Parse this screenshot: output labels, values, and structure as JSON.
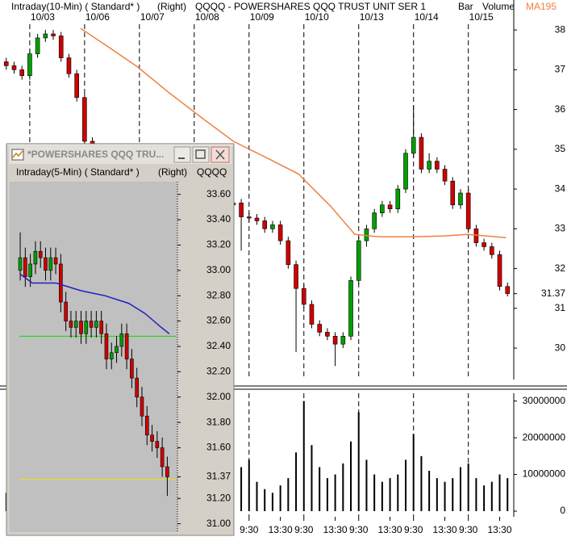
{
  "chart_data": [
    {
      "type": "candlestick",
      "header": [
        "Intraday(10-Min) ( Standard* )",
        "(Right)",
        "QQQQ - POWERSHARES QQQ TRUST UNIT SER 1",
        "Bar",
        "Volume"
      ],
      "up_color": "#00a000",
      "down_color": "#d00000",
      "x": [
        -3,
        -2,
        -1,
        0,
        1,
        2,
        3,
        4,
        5,
        6,
        7,
        8,
        9,
        10,
        11,
        12,
        13,
        14,
        15,
        16,
        17,
        18,
        19,
        20,
        21,
        22,
        23,
        24,
        25,
        26,
        27,
        28,
        29,
        30,
        31,
        32,
        33,
        34,
        35,
        36,
        37,
        38,
        39,
        40,
        41,
        42,
        43,
        44,
        45,
        46,
        47,
        48,
        49,
        50,
        51,
        52,
        53,
        54,
        55,
        56,
        57,
        58,
        59,
        60,
        61
      ],
      "open": [
        37.2,
        37.1,
        37.0,
        36.85,
        37.4,
        37.8,
        37.9,
        37.85,
        37.3,
        36.9,
        36.3,
        35.2,
        34.8,
        34.5,
        34.3,
        34.0,
        34.2,
        34.4,
        34.5,
        34.3,
        34.0,
        33.8,
        33.5,
        33.2,
        33.3,
        33.5,
        33.6,
        33.8,
        33.7,
        33.6,
        33.65,
        33.3,
        33.27,
        33.2,
        33.0,
        33.1,
        32.7,
        32.1,
        31.5,
        31.1,
        30.6,
        30.4,
        30.3,
        30.1,
        30.3,
        31.7,
        32.7,
        33.0,
        33.4,
        33.6,
        33.5,
        34.0,
        34.9,
        35.3,
        34.5,
        34.7,
        34.5,
        34.2,
        33.6,
        33.9,
        33.0,
        32.65,
        32.55,
        32.35,
        31.55
      ],
      "high": [
        37.3,
        37.2,
        37.1,
        37.5,
        37.9,
        38.0,
        38.0,
        37.95,
        37.4,
        37.0,
        36.4,
        35.3,
        34.9,
        34.6,
        34.4,
        34.3,
        34.5,
        34.6,
        34.6,
        34.4,
        34.1,
        33.9,
        33.6,
        33.4,
        33.6,
        33.7,
        33.9,
        33.9,
        33.8,
        33.75,
        33.75,
        33.4,
        33.37,
        33.3,
        33.2,
        33.2,
        32.8,
        32.2,
        31.6,
        31.2,
        30.7,
        30.5,
        30.4,
        30.4,
        31.8,
        32.8,
        33.1,
        33.5,
        33.7,
        33.7,
        34.1,
        35.0,
        36.1,
        35.4,
        34.9,
        34.8,
        34.6,
        34.3,
        34.0,
        34.0,
        33.1,
        32.75,
        32.65,
        32.45,
        31.65
      ],
      "low": [
        37.0,
        36.9,
        36.75,
        36.75,
        37.3,
        37.7,
        37.75,
        37.2,
        36.8,
        36.2,
        35.1,
        34.7,
        34.4,
        34.2,
        33.9,
        33.9,
        34.1,
        34.3,
        34.2,
        33.9,
        33.7,
        33.4,
        33.1,
        33.1,
        33.2,
        33.4,
        33.5,
        33.6,
        33.5,
        33.5,
        32.45,
        33.17,
        33.1,
        32.9,
        32.9,
        32.6,
        32.0,
        29.9,
        31.0,
        30.5,
        30.3,
        30.2,
        29.55,
        30.0,
        30.2,
        31.6,
        32.55,
        32.9,
        33.3,
        33.4,
        33.4,
        33.9,
        34.8,
        34.4,
        34.4,
        34.4,
        34.1,
        33.5,
        33.5,
        32.9,
        32.55,
        32.45,
        32.25,
        31.45,
        31.3
      ],
      "close": [
        37.1,
        37.0,
        36.85,
        37.4,
        37.8,
        37.9,
        37.85,
        37.3,
        36.9,
        36.3,
        35.2,
        34.8,
        34.5,
        34.3,
        34.0,
        34.2,
        34.4,
        34.5,
        34.3,
        34.0,
        33.8,
        33.5,
        33.2,
        33.3,
        33.5,
        33.6,
        33.8,
        33.7,
        33.6,
        33.65,
        33.3,
        33.27,
        33.2,
        33.0,
        33.1,
        32.7,
        32.1,
        31.5,
        31.1,
        30.6,
        30.4,
        30.3,
        30.1,
        30.3,
        31.7,
        32.7,
        33.0,
        33.4,
        33.6,
        33.5,
        34.0,
        34.9,
        35.3,
        34.5,
        34.7,
        34.5,
        34.2,
        33.6,
        33.9,
        33.0,
        32.65,
        32.55,
        32.35,
        31.55,
        31.37
      ],
      "ma": {
        "name": "MA195",
        "color": "#f08040",
        "x": [
          6.5,
          9.6,
          13.7,
          17.8,
          21.9,
          26,
          30.2,
          34.3,
          38.4,
          41.5,
          44.6,
          48.7,
          52.8,
          55.9,
          60.8
        ],
        "values": [
          38.04,
          37.63,
          37.08,
          36.42,
          35.8,
          35.2,
          34.79,
          34.38,
          33.57,
          32.86,
          32.8,
          32.8,
          32.82,
          32.86,
          32.78
        ]
      },
      "xlim": [
        -3.8,
        61.8
      ],
      "xticks": [
        {
          "value": 0,
          "label": "10/03"
        },
        {
          "value": 7,
          "label": "10/06"
        },
        {
          "value": 14,
          "label": "10/07"
        },
        {
          "value": 21,
          "label": "10/08"
        },
        {
          "value": 28,
          "label": "10/09"
        },
        {
          "value": 35,
          "label": "10/10"
        },
        {
          "value": 42,
          "label": "10/13"
        },
        {
          "value": 49,
          "label": "10/14"
        },
        {
          "value": 56,
          "label": "10/15"
        }
      ],
      "ylim": [
        29.21,
        38.55
      ],
      "yticks": [
        38,
        37,
        36,
        35,
        34,
        33,
        32,
        31.37,
        31,
        30
      ]
    },
    {
      "type": "bar",
      "color": "#000000",
      "x": [
        -3,
        -2,
        -1,
        0,
        1,
        2,
        3,
        4,
        5,
        6,
        7,
        8,
        9,
        10,
        11,
        12,
        13,
        14,
        15,
        16,
        17,
        18,
        19,
        20,
        21,
        22,
        23,
        24,
        25,
        26,
        27,
        28,
        29,
        30,
        31,
        32,
        33,
        34,
        35,
        36,
        37,
        38,
        39,
        40,
        41,
        42,
        43,
        44,
        45,
        46,
        47,
        48,
        49,
        50,
        51,
        52,
        53,
        54,
        55,
        56,
        57,
        58,
        59,
        60,
        61
      ],
      "values": [
        5000000,
        4000000,
        6000000,
        9000000,
        6000000,
        5000000,
        4000000,
        5000000,
        6000000,
        8000000,
        12000000,
        7000000,
        6000000,
        5000000,
        6000000,
        7000000,
        9000000,
        10000000,
        7000000,
        6000000,
        5000000,
        6000000,
        8000000,
        10000000,
        9000000,
        6000000,
        5000000,
        5000000,
        6000000,
        7000000,
        12000000,
        14000000,
        8000000,
        6000000,
        5000000,
        7000000,
        9000000,
        16000000,
        30000000,
        18000000,
        12000000,
        9000000,
        10000000,
        13000000,
        19000000,
        27000000,
        14000000,
        10000000,
        8000000,
        9000000,
        10000000,
        14000000,
        21000000,
        15000000,
        11000000,
        9000000,
        8000000,
        9000000,
        12000000,
        13000000,
        9000000,
        7000000,
        8000000,
        10000000,
        9000000
      ],
      "xlim": [
        -3.8,
        61.8
      ],
      "xticks": [
        {
          "value": 28,
          "label": "9:30"
        },
        {
          "value": 32,
          "label": "13:30"
        },
        {
          "value": 35,
          "label": "9:30"
        },
        {
          "value": 39,
          "label": "13:30"
        },
        {
          "value": 42,
          "label": "9:30"
        },
        {
          "value": 46,
          "label": "13:30"
        },
        {
          "value": 49,
          "label": "9:30"
        },
        {
          "value": 53,
          "label": "13:30"
        },
        {
          "value": 56,
          "label": "9:30"
        },
        {
          "value": 60,
          "label": "13:30"
        }
      ],
      "ylim": [
        0,
        33000000
      ],
      "yticks": [
        30000000,
        20000000,
        10000000,
        0
      ]
    },
    {
      "type": "candlestick",
      "window_title": "*POWERSHARES QQQ TRU...",
      "header": [
        "Intraday(5-Min) ( Standard* )",
        "(Right)",
        "QQQQ"
      ],
      "up_color": "#00a000",
      "down_color": "#d00000",
      "x": [
        0,
        1,
        2,
        3,
        4,
        5,
        6,
        7,
        8,
        9,
        10,
        11,
        12,
        13,
        14,
        15,
        16,
        17,
        18,
        19,
        20,
        21,
        22,
        23,
        24,
        25,
        26,
        27,
        28,
        29
      ],
      "open": [
        33.0,
        33.1,
        32.95,
        33.05,
        33.15,
        33.1,
        33.0,
        33.1,
        33.05,
        32.75,
        32.6,
        32.55,
        32.6,
        32.5,
        32.6,
        32.55,
        32.6,
        32.5,
        32.3,
        32.35,
        32.4,
        32.5,
        32.3,
        32.15,
        32.0,
        31.85,
        31.7,
        31.65,
        31.6,
        31.45
      ],
      "high": [
        33.3,
        33.18,
        33.13,
        33.23,
        33.23,
        33.18,
        33.18,
        33.18,
        33.13,
        32.83,
        32.68,
        32.68,
        32.68,
        32.68,
        32.68,
        32.68,
        32.68,
        32.58,
        32.43,
        32.48,
        32.58,
        32.58,
        32.38,
        32.23,
        32.08,
        31.93,
        31.78,
        31.73,
        31.68,
        31.53
      ],
      "low": [
        32.92,
        32.87,
        32.87,
        32.97,
        33.02,
        32.92,
        32.92,
        32.97,
        32.67,
        32.52,
        32.47,
        32.47,
        32.42,
        32.42,
        32.47,
        32.47,
        32.42,
        32.22,
        32.22,
        32.27,
        32.32,
        32.22,
        32.07,
        31.92,
        31.77,
        31.62,
        31.57,
        31.52,
        31.37,
        31.22
      ],
      "close": [
        33.1,
        32.95,
        33.05,
        33.15,
        33.1,
        33.0,
        33.1,
        33.05,
        32.75,
        32.6,
        32.55,
        32.6,
        32.5,
        32.6,
        32.55,
        32.6,
        32.5,
        32.3,
        32.35,
        32.4,
        32.5,
        32.3,
        32.15,
        32.0,
        31.85,
        31.7,
        31.65,
        31.6,
        31.45,
        31.37
      ],
      "ma": {
        "color": "#2020c0",
        "x": [
          0,
          2.4,
          7.1,
          11.9,
          16.7,
          21.4,
          24.6,
          27.8,
          29.4
        ],
        "values": [
          32.97,
          32.9,
          32.9,
          32.84,
          32.8,
          32.74,
          32.66,
          32.55,
          32.5
        ]
      },
      "hlines": [
        {
          "value": 32.48,
          "color": "#00e000"
        },
        {
          "value": 31.35,
          "color": "#e8e800"
        }
      ],
      "xlim": [
        -1.6,
        31
      ],
      "ylim": [
        30.94,
        33.7
      ],
      "yticks": [
        {
          "value": 33.6,
          "label": "33.60"
        },
        {
          "value": 33.4,
          "label": "33.40"
        },
        {
          "value": 33.2,
          "label": "33.20"
        },
        {
          "value": 33,
          "label": "33.00"
        },
        {
          "value": 32.8,
          "label": "32.80"
        },
        {
          "value": 32.6,
          "label": "32.60"
        },
        {
          "value": 32.4,
          "label": "32.40"
        },
        {
          "value": 32.2,
          "label": "32.20"
        },
        {
          "value": 32,
          "label": "32.00"
        },
        {
          "value": 31.8,
          "label": "31.80"
        },
        {
          "value": 31.6,
          "label": "31.60"
        },
        31.37,
        {
          "value": 31.2,
          "label": "31.20"
        },
        {
          "value": 31,
          "label": "31.00"
        }
      ]
    }
  ]
}
